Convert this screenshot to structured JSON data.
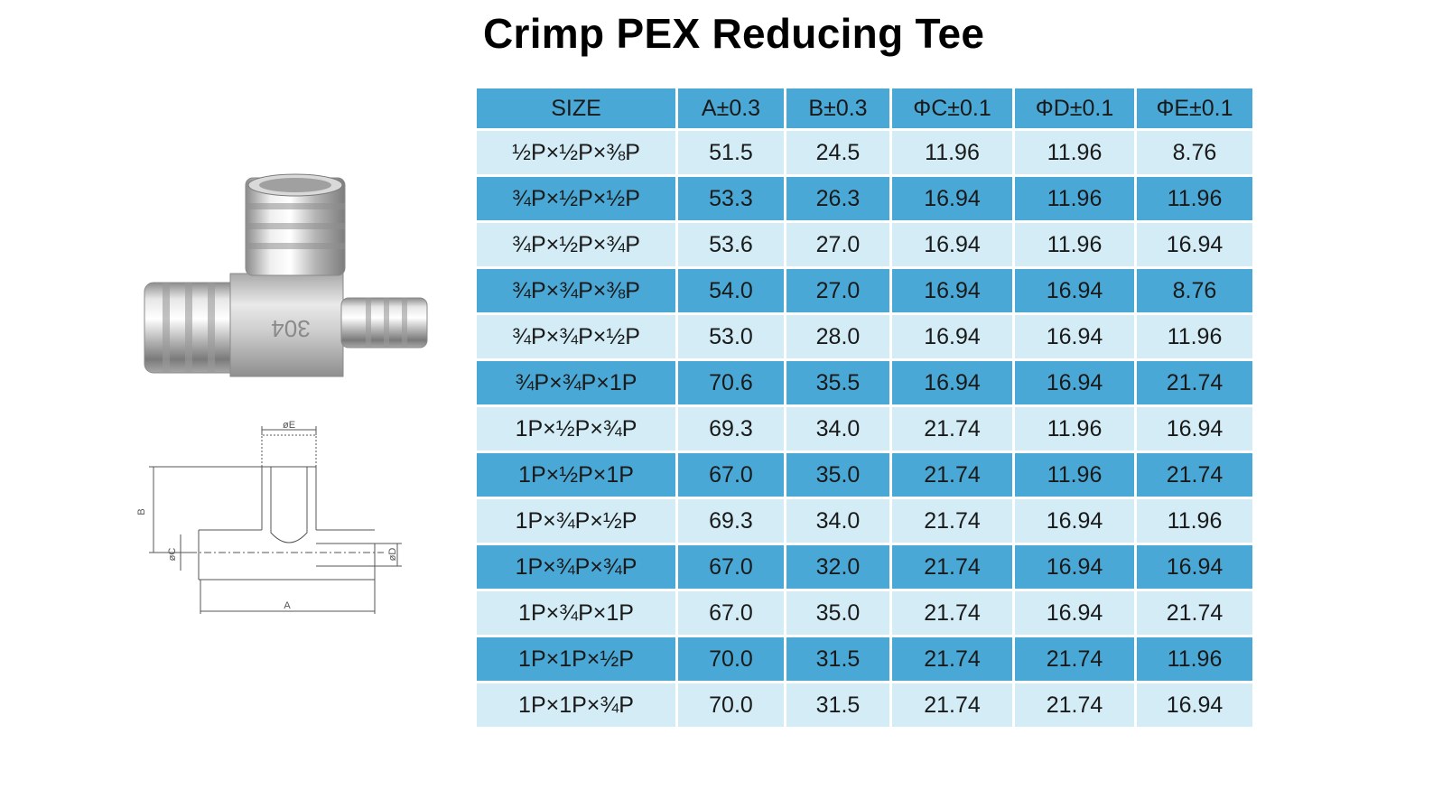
{
  "title": "Crimp PEX Reducing Tee",
  "product_image": {
    "marking": "304"
  },
  "drawing": {
    "labels": {
      "e": "øE",
      "b": "B",
      "c": "øC",
      "d": "øD",
      "a": "A"
    }
  },
  "table": {
    "headers": [
      "SIZE",
      "A±0.3",
      "B±0.3",
      "ΦC±0.1",
      "ΦD±0.1",
      "ΦE±0.1"
    ],
    "rows": [
      [
        "½P×½P×⅜P",
        "51.5",
        "24.5",
        "11.96",
        "11.96",
        "8.76"
      ],
      [
        "¾P×½P×½P",
        "53.3",
        "26.3",
        "16.94",
        "11.96",
        "11.96"
      ],
      [
        "¾P×½P×¾P",
        "53.6",
        "27.0",
        "16.94",
        "11.96",
        "16.94"
      ],
      [
        "¾P×¾P×⅜P",
        "54.0",
        "27.0",
        "16.94",
        "16.94",
        "8.76"
      ],
      [
        "¾P×¾P×½P",
        "53.0",
        "28.0",
        "16.94",
        "16.94",
        "11.96"
      ],
      [
        "¾P×¾P×1P",
        "70.6",
        "35.5",
        "16.94",
        "16.94",
        "21.74"
      ],
      [
        "1P×½P×¾P",
        "69.3",
        "34.0",
        "21.74",
        "11.96",
        "16.94"
      ],
      [
        "1P×½P×1P",
        "67.0",
        "35.0",
        "21.74",
        "11.96",
        "21.74"
      ],
      [
        "1P×¾P×½P",
        "69.3",
        "34.0",
        "21.74",
        "16.94",
        "11.96"
      ],
      [
        "1P×¾P×¾P",
        "67.0",
        "32.0",
        "21.74",
        "16.94",
        "16.94"
      ],
      [
        "1P×¾P×1P",
        "67.0",
        "35.0",
        "21.74",
        "16.94",
        "21.74"
      ],
      [
        "1P×1P×½P",
        "70.0",
        "31.5",
        "21.74",
        "21.74",
        "11.96"
      ],
      [
        "1P×1P×¾P",
        "70.0",
        "31.5",
        "21.74",
        "21.74",
        "16.94"
      ]
    ]
  }
}
